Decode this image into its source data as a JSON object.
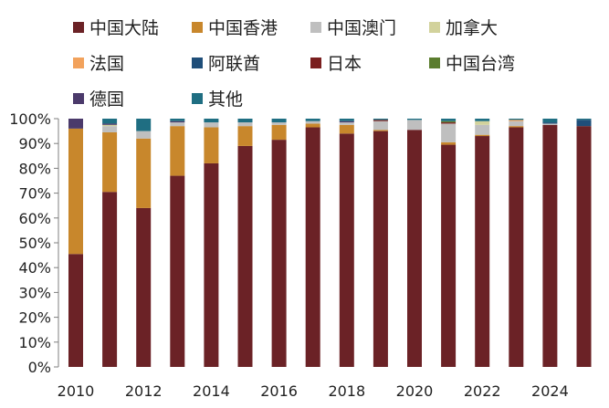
{
  "chart_data": {
    "type": "bar",
    "stacked": true,
    "title": "",
    "xlabel": "",
    "ylabel": "",
    "ylim": [
      0,
      100
    ],
    "y_ticks": [
      "0%",
      "10%",
      "20%",
      "30%",
      "40%",
      "50%",
      "60%",
      "70%",
      "80%",
      "90%",
      "100%"
    ],
    "x_tick_labels": [
      "2010",
      "2012",
      "2014",
      "2016",
      "2018",
      "2020",
      "2022",
      "2024"
    ],
    "categories": [
      "2010",
      "2011",
      "2012",
      "2013",
      "2014",
      "2015",
      "2016",
      "2017",
      "2018",
      "2019",
      "2020",
      "2021",
      "2022",
      "2023",
      "2024",
      "2025"
    ],
    "legend_placement": "top",
    "series": [
      {
        "name": "中国大陆",
        "color": "#6b2226",
        "values": [
          45.5,
          70.5,
          64.0,
          77.0,
          82.0,
          89.0,
          91.5,
          96.5,
          94.0,
          95.0,
          95.5,
          89.5,
          93.0,
          96.5,
          97.5,
          97.0
        ]
      },
      {
        "name": "中国香港",
        "color": "#c8872c",
        "values": [
          50.5,
          24.0,
          28.0,
          20.0,
          14.5,
          8.0,
          6.0,
          1.5,
          3.5,
          0.5,
          0,
          1.0,
          0.5,
          0.5,
          0,
          0
        ]
      },
      {
        "name": "中国澳门",
        "color": "#bfbfbf",
        "values": [
          0,
          2.5,
          3.0,
          1.5,
          2.0,
          1.5,
          1.0,
          1.0,
          1.0,
          3.5,
          4.0,
          7.5,
          4.0,
          2.0,
          0.5,
          0
        ]
      },
      {
        "name": "加拿大",
        "color": "#d2d29c",
        "values": [
          0,
          0.5,
          0,
          0,
          0,
          0,
          0,
          0,
          0,
          0,
          0,
          0,
          1.5,
          0,
          0,
          0
        ]
      },
      {
        "name": "法国",
        "color": "#f2a25c",
        "values": [
          0,
          0,
          0,
          0,
          0,
          0,
          0,
          0,
          0,
          0,
          0,
          0,
          0,
          0.5,
          0,
          0
        ]
      },
      {
        "name": "阿联酋",
        "color": "#1f4e79",
        "values": [
          0,
          0,
          0,
          0,
          0,
          0,
          0,
          0,
          0,
          0,
          0,
          0,
          0,
          0,
          0.5,
          2.5
        ]
      },
      {
        "name": "日本",
        "color": "#7a1f1f",
        "values": [
          0,
          0,
          0,
          0,
          0,
          0,
          0,
          0,
          0,
          0.5,
          0,
          0.5,
          0,
          0,
          0,
          0
        ]
      },
      {
        "name": "中国台湾",
        "color": "#5b7d2e",
        "values": [
          0,
          0,
          0,
          0,
          0,
          0,
          0,
          0,
          0,
          0,
          0,
          0.5,
          0,
          0,
          0,
          0
        ]
      },
      {
        "name": "德国",
        "color": "#4b3a6b",
        "values": [
          4.0,
          0.5,
          0,
          0.5,
          0,
          0,
          0,
          0,
          0.5,
          0,
          0,
          0,
          0,
          0,
          0,
          0
        ]
      },
      {
        "name": "其他",
        "color": "#1f6e82",
        "values": [
          0,
          2.0,
          5.0,
          1.0,
          1.5,
          1.5,
          1.5,
          1.0,
          1.0,
          0.5,
          0.5,
          1.0,
          1.0,
          0.5,
          1.5,
          0.5
        ]
      }
    ]
  }
}
